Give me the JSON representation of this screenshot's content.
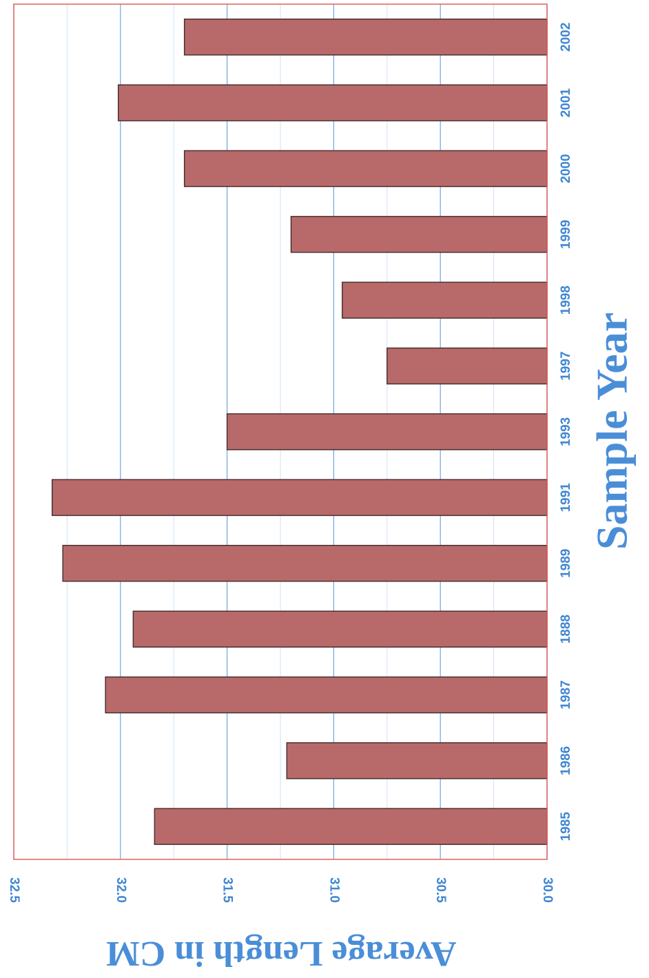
{
  "chart_data": {
    "type": "bar",
    "orientation": "horizontal",
    "categories": [
      "1985",
      "1986",
      "1987",
      "1888",
      "1989",
      "1991",
      "1993",
      "1997",
      "1998",
      "1999",
      "2000",
      "2001",
      "2002"
    ],
    "values": [
      31.84,
      31.22,
      32.07,
      31.94,
      32.27,
      32.32,
      31.5,
      30.75,
      30.96,
      31.2,
      31.7,
      32.01,
      31.7
    ],
    "xlabel": "Sample Year",
    "ylabel": "Average Length in CM",
    "ylim": [
      30.0,
      32.5
    ],
    "ticks": [
      "30.0",
      "30.5",
      "31.0",
      "31.5",
      "32.0",
      "32.5"
    ],
    "grid": true,
    "colors": {
      "bar": "#b86a6a",
      "bar_edge": "#4a3030",
      "major_grid": "#6ea6dc",
      "minor_grid": "#cfe0f2",
      "frame": "#e0605a",
      "text": "#3f86d2"
    }
  }
}
